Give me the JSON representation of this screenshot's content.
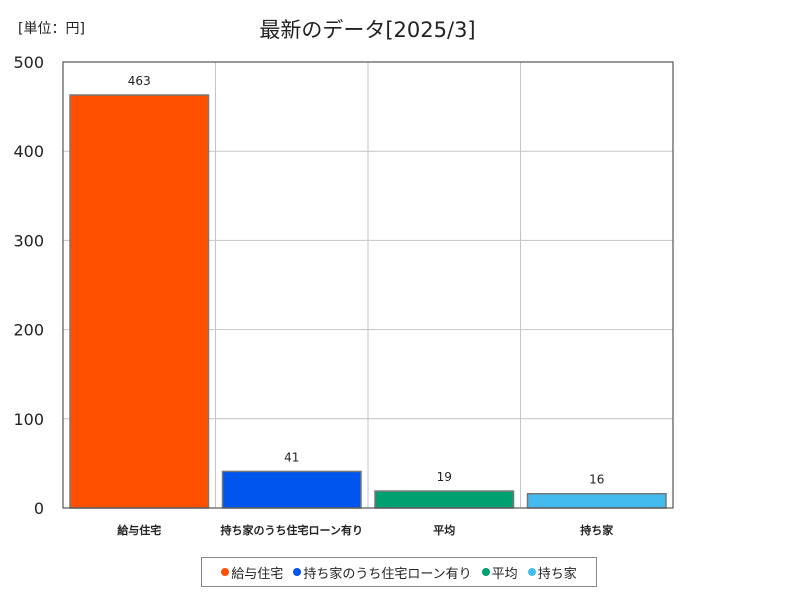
{
  "unit_label": "[単位：円]",
  "chart_data": {
    "type": "bar",
    "title": "最新のデータ[2025/3]",
    "categories": [
      "給与住宅",
      "持ち家のうち住宅ローン有り",
      "平均",
      "持ち家"
    ],
    "values": [
      463,
      41,
      19,
      16
    ],
    "data_labels": [
      "463",
      "41",
      "19",
      "16"
    ],
    "colors": [
      "#ff5000",
      "#0055ee",
      "#00a070",
      "#44bbee"
    ],
    "ylim": [
      0,
      500
    ],
    "yticks": [
      0,
      100,
      200,
      300,
      400,
      500
    ],
    "grid": true,
    "legend": "bottom"
  }
}
